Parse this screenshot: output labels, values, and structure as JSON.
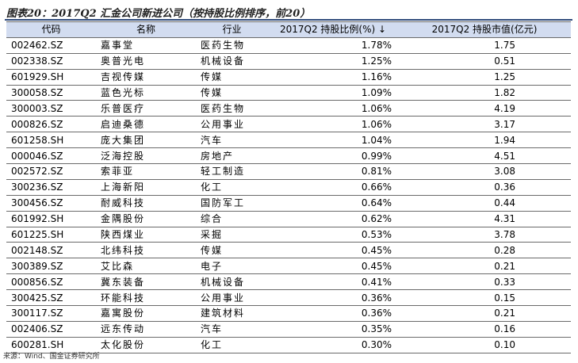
{
  "title": "图表20：2017Q2 汇金公司新进公司（按持股比例排序，前20）",
  "table": {
    "headers": [
      "代码",
      "名称",
      "行业",
      "2017Q2 持股比例(%)",
      "2017Q2 持股市值(亿元)"
    ],
    "sort_arrow": "↓",
    "rows": [
      [
        "002462.SZ",
        "嘉事堂",
        "医药生物",
        "1.78%",
        "1.75"
      ],
      [
        "002338.SZ",
        "奥普光电",
        "机械设备",
        "1.25%",
        "0.51"
      ],
      [
        "601929.SH",
        "吉视传媒",
        "传媒",
        "1.16%",
        "1.25"
      ],
      [
        "300058.SZ",
        "蓝色光标",
        "传媒",
        "1.09%",
        "1.82"
      ],
      [
        "300003.SZ",
        "乐普医疗",
        "医药生物",
        "1.06%",
        "4.19"
      ],
      [
        "000826.SZ",
        "启迪桑德",
        "公用事业",
        "1.06%",
        "3.17"
      ],
      [
        "601258.SH",
        "庞大集团",
        "汽车",
        "1.04%",
        "1.94"
      ],
      [
        "000046.SZ",
        "泛海控股",
        "房地产",
        "0.99%",
        "4.51"
      ],
      [
        "002572.SZ",
        "索菲亚",
        "轻工制造",
        "0.81%",
        "3.08"
      ],
      [
        "300236.SZ",
        "上海新阳",
        "化工",
        "0.66%",
        "0.36"
      ],
      [
        "300456.SZ",
        "耐威科技",
        "国防军工",
        "0.64%",
        "0.44"
      ],
      [
        "601992.SH",
        "金隅股份",
        "综合",
        "0.62%",
        "4.31"
      ],
      [
        "601225.SH",
        "陕西煤业",
        "采掘",
        "0.53%",
        "3.78"
      ],
      [
        "002148.SZ",
        "北纬科技",
        "传媒",
        "0.45%",
        "0.28"
      ],
      [
        "300389.SZ",
        "艾比森",
        "电子",
        "0.45%",
        "0.21"
      ],
      [
        "000856.SZ",
        "冀东装备",
        "机械设备",
        "0.41%",
        "0.33"
      ],
      [
        "300425.SZ",
        "环能科技",
        "公用事业",
        "0.36%",
        "0.15"
      ],
      [
        "300117.SZ",
        "嘉寓股份",
        "建筑材料",
        "0.36%",
        "0.21"
      ],
      [
        "002406.SZ",
        "远东传动",
        "汽车",
        "0.35%",
        "0.16"
      ],
      [
        "600281.SH",
        "太化股份",
        "化工",
        "0.30%",
        "0.10"
      ]
    ]
  },
  "source": "来源：Wind、国金证券研究所"
}
